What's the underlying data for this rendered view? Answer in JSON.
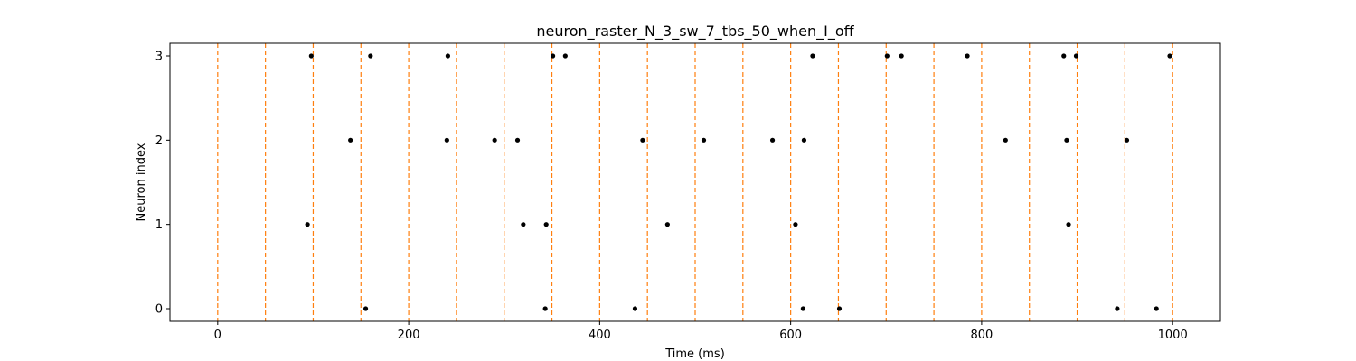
{
  "chart_data": {
    "type": "scatter",
    "title": "neuron_raster_N_3_sw_7_tbs_50_when_I_off",
    "xlabel": "Time (ms)",
    "ylabel": "Neuron index",
    "xlim": [
      -50,
      1050
    ],
    "ylim": [
      -0.15,
      3.15
    ],
    "x_ticks": [
      0,
      200,
      400,
      600,
      800,
      1000
    ],
    "y_ticks": [
      0,
      1,
      2,
      3
    ],
    "grid": false,
    "legend": "none",
    "marker_color": "#000000",
    "vline_color": "#ff7f0e",
    "vlines_x": [
      0,
      50,
      100,
      150,
      200,
      250,
      300,
      350,
      400,
      450,
      500,
      550,
      600,
      650,
      700,
      750,
      800,
      850,
      900,
      950,
      1000
    ],
    "spikes": [
      {
        "neuron": 3,
        "times": [
          98,
          160,
          241,
          351,
          364,
          623,
          701,
          716,
          785,
          886,
          899,
          997
        ]
      },
      {
        "neuron": 2,
        "times": [
          139,
          240,
          290,
          314,
          445,
          509,
          581,
          614,
          825,
          889,
          952
        ]
      },
      {
        "neuron": 1,
        "times": [
          94,
          320,
          344,
          471,
          605,
          891
        ]
      },
      {
        "neuron": 0,
        "times": [
          155,
          343,
          437,
          613,
          651,
          942,
          983
        ]
      }
    ]
  }
}
